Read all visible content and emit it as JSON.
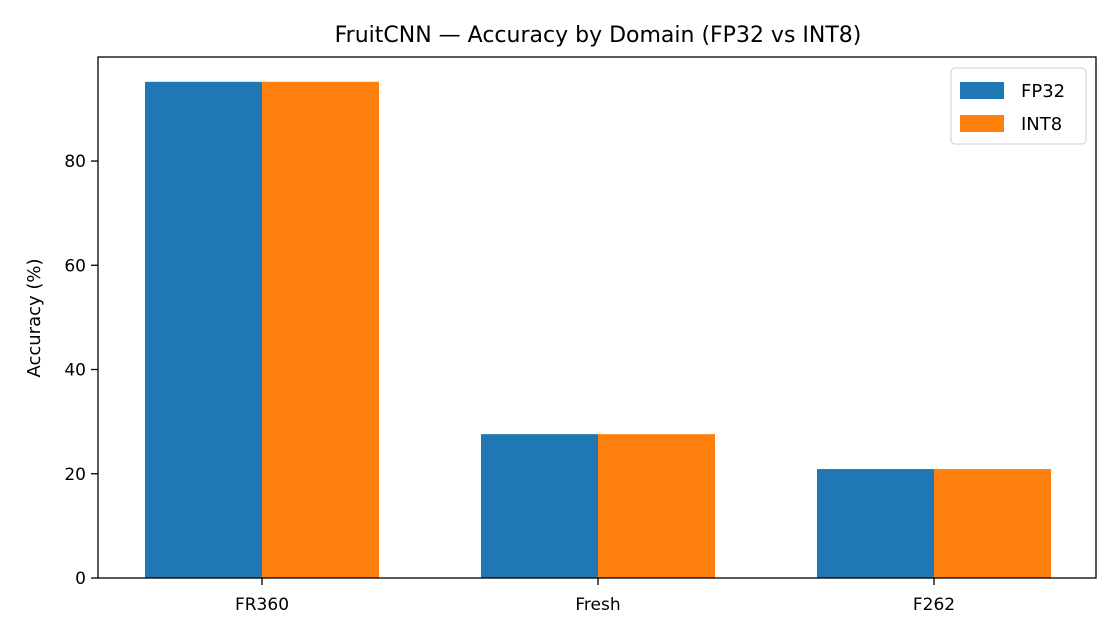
{
  "chart_data": {
    "type": "bar",
    "title": "FruitCNN — Accuracy by Domain (FP32 vs INT8)",
    "xlabel": "",
    "ylabel": "Accuracy (%)",
    "categories": [
      "FR360",
      "Fresh",
      "F262"
    ],
    "series": [
      {
        "name": "FP32",
        "color": "#1f77b4",
        "values": [
          95.2,
          27.6,
          20.9
        ]
      },
      {
        "name": "INT8",
        "color": "#ff7f0e",
        "values": [
          95.2,
          27.6,
          20.9
        ]
      }
    ],
    "ylim": [
      0,
      99.96
    ],
    "yticks": [
      0,
      20,
      40,
      60,
      80
    ],
    "grid": false,
    "legend": "top-right"
  }
}
